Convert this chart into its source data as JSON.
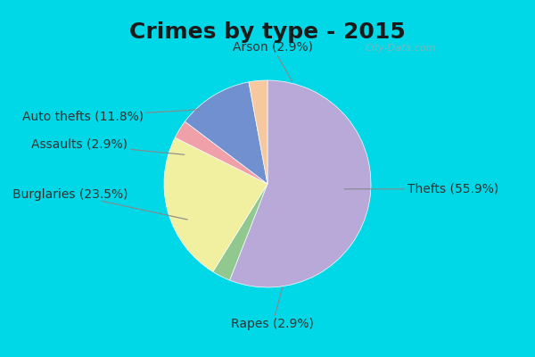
{
  "title": "Crimes by type - 2015",
  "labels": [
    "Thefts",
    "Burglaries",
    "Rapes",
    "Arson",
    "Auto thefts",
    "Assaults"
  ],
  "values": [
    55.9,
    23.5,
    2.9,
    2.9,
    11.8,
    2.9
  ],
  "colors": [
    "#b8a9d9",
    "#f0f0a0",
    "#90c890",
    "#f5c8a0",
    "#7090d0",
    "#f0a0a8"
  ],
  "background_top": "#00d8e8",
  "background_main": "#c8e8d8",
  "title_fontsize": 18,
  "label_fontsize": 10,
  "watermark": "City-Data.com"
}
